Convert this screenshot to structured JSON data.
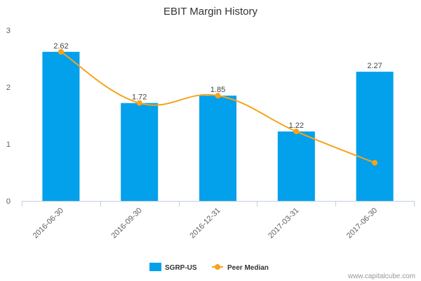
{
  "chart_data": {
    "type": "bar",
    "title": "EBIT Margin History",
    "categories": [
      "2016-06-30",
      "2016-09-30",
      "2016-12-31",
      "2017-03-31",
      "2017-06-30"
    ],
    "ylim": [
      0,
      3
    ],
    "yticks": [
      "0",
      "1",
      "2",
      "3"
    ],
    "series": [
      {
        "name": "SGRP-US",
        "kind": "bar",
        "color": "#03a0eb",
        "values": [
          2.62,
          1.72,
          1.85,
          1.22,
          2.27
        ],
        "labels": [
          "2.62",
          "1.72",
          "1.85",
          "1.22",
          "2.27"
        ]
      },
      {
        "name": "Peer Median",
        "kind": "line",
        "color": "#f6a31c",
        "values": [
          2.62,
          1.72,
          1.85,
          1.22,
          0.67
        ]
      }
    ],
    "legend": "bottom-center",
    "grid": false
  },
  "credit": "www.capitalcube.com"
}
